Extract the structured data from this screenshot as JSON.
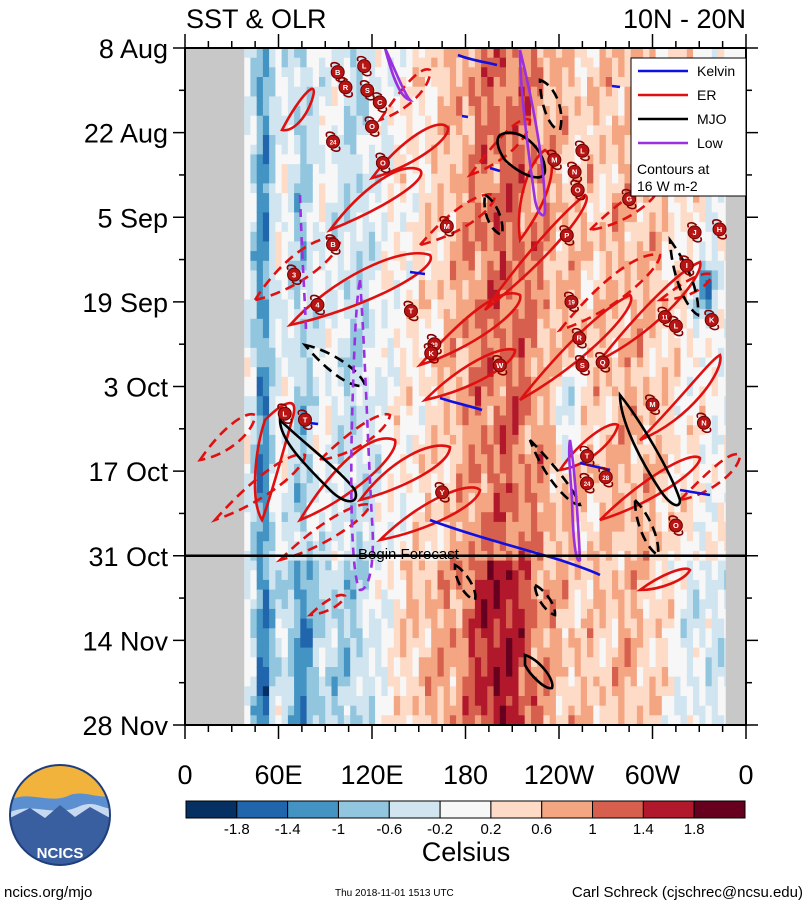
{
  "chart_data": {
    "type": "heatmap",
    "title_left": "SST & OLR",
    "title_right": "10N - 20N",
    "x_ticks": [
      {
        "lon": 0,
        "label": "0"
      },
      {
        "lon": 60,
        "label": "60E"
      },
      {
        "lon": 120,
        "label": "120E"
      },
      {
        "lon": 180,
        "label": "180"
      },
      {
        "lon": 240,
        "label": "120W"
      },
      {
        "lon": 300,
        "label": "60W"
      },
      {
        "lon": 360,
        "label": "0"
      }
    ],
    "xlim": [
      0,
      360
    ],
    "y_ticks": [
      {
        "day": 0,
        "label": "8 Aug"
      },
      {
        "day": 14,
        "label": "22 Aug"
      },
      {
        "day": 28,
        "label": "5 Sep"
      },
      {
        "day": 42,
        "label": "19 Sep"
      },
      {
        "day": 56,
        "label": "3 Oct"
      },
      {
        "day": 70,
        "label": "17 Oct"
      },
      {
        "day": 84,
        "label": "31 Oct"
      },
      {
        "day": 98,
        "label": "14 Nov"
      },
      {
        "day": 112,
        "label": "28 Nov"
      }
    ],
    "ylim": [
      0,
      112
    ],
    "forecast_line": {
      "day": 84,
      "label": "Begin Forecast"
    },
    "colorbar": {
      "label": "Celsius",
      "levels": [
        -1.8,
        -1.4,
        -1,
        -0.6,
        -0.2,
        0.2,
        0.6,
        1,
        1.4,
        1.8
      ],
      "level_labels": [
        "-1.8",
        "-1.4",
        "-1",
        "-0.6",
        "-0.2",
        "0.2",
        "0.6",
        "1",
        "1.4",
        "1.8"
      ],
      "colors": [
        "#053061",
        "#2166ac",
        "#4393c3",
        "#92c5de",
        "#d1e5f0",
        "#f7f7f7",
        "#fddbc7",
        "#f4a582",
        "#d6604d",
        "#b2182b",
        "#67001f"
      ]
    },
    "legend": {
      "placement": "top-right",
      "entries": [
        {
          "name": "Kelvin",
          "color": "#1010e0"
        },
        {
          "name": "ER",
          "color": "#e01010"
        },
        {
          "name": "MJO",
          "color": "#000000"
        },
        {
          "name": "Low",
          "color": "#9a30e0"
        }
      ],
      "note_line1": "Contours at",
      "note_line2": "16 W m-2"
    },
    "land_masks": [
      {
        "lon_start": 0,
        "lon_end": 38,
        "day_start": 0,
        "day_end": 112
      },
      {
        "lon_start": 347,
        "lon_end": 360,
        "day_start": 10,
        "day_end": 112
      }
    ],
    "storm_markers": [
      {
        "lon": 98,
        "day": 4,
        "label": "B"
      },
      {
        "lon": 115,
        "day": 3,
        "label": "L"
      },
      {
        "lon": 103,
        "day": 6.5,
        "label": "R"
      },
      {
        "lon": 117,
        "day": 7,
        "label": "S"
      },
      {
        "lon": 125,
        "day": 9,
        "label": "C"
      },
      {
        "lon": 120,
        "day": 13,
        "label": "O"
      },
      {
        "lon": 95,
        "day": 15.5,
        "label": "24"
      },
      {
        "lon": 127,
        "day": 19,
        "label": "O"
      },
      {
        "lon": 255,
        "day": 17,
        "label": "L"
      },
      {
        "lon": 237,
        "day": 18.5,
        "label": "M"
      },
      {
        "lon": 250,
        "day": 20.5,
        "label": "N"
      },
      {
        "lon": 252,
        "day": 23.5,
        "label": "O"
      },
      {
        "lon": 285,
        "day": 25,
        "label": "G"
      },
      {
        "lon": 168,
        "day": 29.5,
        "label": "M"
      },
      {
        "lon": 245,
        "day": 31,
        "label": "P"
      },
      {
        "lon": 327,
        "day": 30.5,
        "label": "J"
      },
      {
        "lon": 343,
        "day": 30,
        "label": "H"
      },
      {
        "lon": 95,
        "day": 32.5,
        "label": "B"
      },
      {
        "lon": 322,
        "day": 36,
        "label": "I"
      },
      {
        "lon": 70,
        "day": 37.5,
        "label": "3"
      },
      {
        "lon": 85,
        "day": 42.5,
        "label": "4"
      },
      {
        "lon": 145,
        "day": 43.5,
        "label": "T"
      },
      {
        "lon": 248,
        "day": 42,
        "label": "19"
      },
      {
        "lon": 308,
        "day": 44.5,
        "label": "11"
      },
      {
        "lon": 315,
        "day": 46,
        "label": "L"
      },
      {
        "lon": 338,
        "day": 45,
        "label": "K"
      },
      {
        "lon": 160,
        "day": 49,
        "label": "29"
      },
      {
        "lon": 158,
        "day": 50.5,
        "label": "K"
      },
      {
        "lon": 253,
        "day": 48,
        "label": "R"
      },
      {
        "lon": 255,
        "day": 52.5,
        "label": "S"
      },
      {
        "lon": 202,
        "day": 52.5,
        "label": "W"
      },
      {
        "lon": 268,
        "day": 52,
        "label": "Q"
      },
      {
        "lon": 300,
        "day": 59,
        "label": "M"
      },
      {
        "lon": 77,
        "day": 61.5,
        "label": "T"
      },
      {
        "lon": 64,
        "day": 60.5,
        "label": "L"
      },
      {
        "lon": 333,
        "day": 62,
        "label": "N"
      },
      {
        "lon": 258,
        "day": 67.5,
        "label": "T"
      },
      {
        "lon": 258,
        "day": 72,
        "label": "24"
      },
      {
        "lon": 270,
        "day": 71,
        "label": "28"
      },
      {
        "lon": 165,
        "day": 73.5,
        "label": "Y"
      },
      {
        "lon": 315,
        "day": 79,
        "label": "O"
      }
    ]
  },
  "footer": {
    "logo_text": "NCICS",
    "site": "ncics.org/mjo",
    "timestamp": "Thu 2018-11-01 1513 UTC",
    "author": "Carl Schreck (cjschrec@ncsu.edu)"
  }
}
